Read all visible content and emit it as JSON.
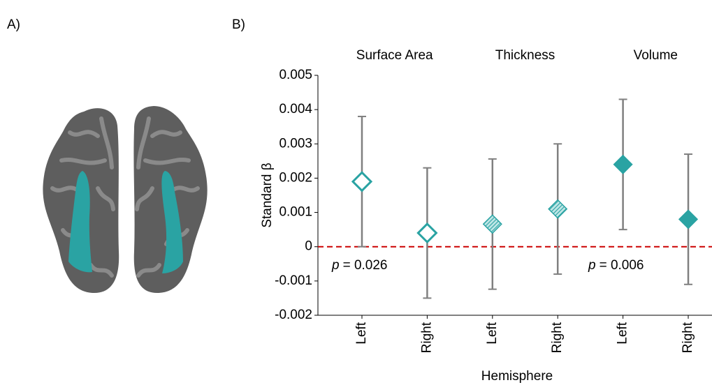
{
  "panel_labels": [
    "A)",
    "B)"
  ],
  "chart_data": {
    "type": "errorbar",
    "y_label": "Standard β",
    "x_label": "Hemisphere",
    "groups": [
      {
        "name": "Surface Area",
        "marker": "hollow"
      },
      {
        "name": "Thickness",
        "marker": "hatched"
      },
      {
        "name": "Volume",
        "marker": "filled"
      }
    ],
    "categories": [
      "Left",
      "Right",
      "Left",
      "Right",
      "Left",
      "Right"
    ],
    "values": [
      0.0019,
      0.0004,
      0.00066,
      0.0011,
      0.0024,
      0.0008
    ],
    "errors": [
      0.0019,
      0.0019,
      0.0019,
      0.0019,
      0.0019,
      0.0019
    ],
    "color": "#2aa3a3",
    "error_color": "#808080",
    "ylim": [
      -0.002,
      0.005
    ],
    "yticks": [
      -0.002,
      -0.001,
      0,
      0.001,
      0.002,
      0.003,
      0.004,
      0.005
    ],
    "reference_line": {
      "value": 0,
      "color": "#cc0000",
      "style": "dashed"
    },
    "annotations": [
      {
        "italic": "p",
        "text": "= 0.026"
      },
      {
        "italic": "p",
        "text": "= 0.006"
      }
    ]
  }
}
